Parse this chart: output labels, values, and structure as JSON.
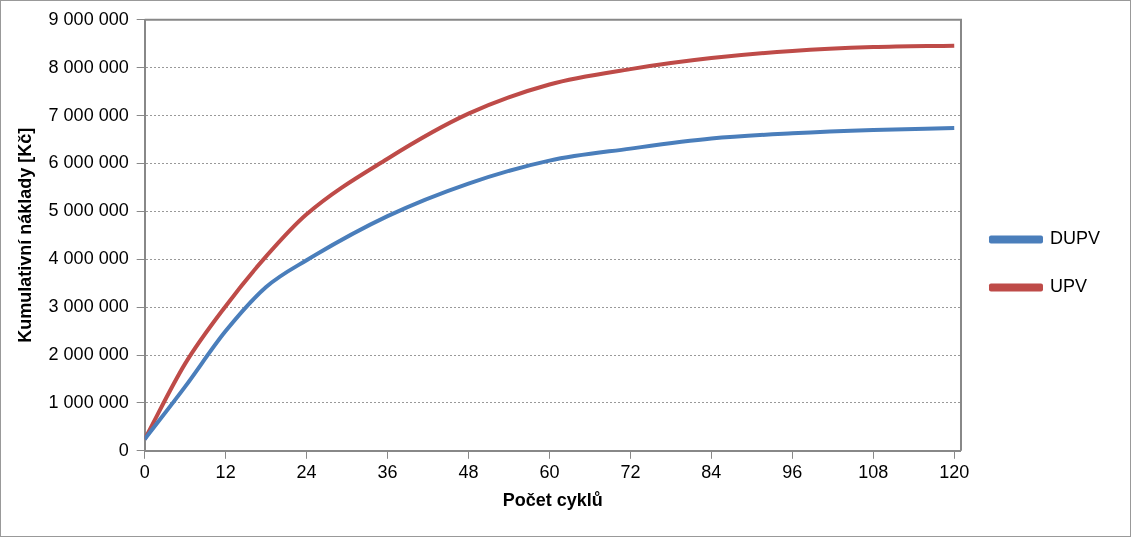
{
  "chart_data": {
    "type": "line",
    "xlabel": "Počet cyklů",
    "ylabel": "Kumulativní náklady [Kč]",
    "x": [
      0,
      6,
      12,
      18,
      24,
      36,
      48,
      60,
      72,
      84,
      96,
      108,
      120
    ],
    "series": [
      {
        "name": "DUPV",
        "color": "#4a7ebb",
        "values": [
          240000,
          1340000,
          2500000,
          3420000,
          3980000,
          4900000,
          5580000,
          6060000,
          6310000,
          6520000,
          6630000,
          6700000,
          6740000
        ]
      },
      {
        "name": "UPV",
        "color": "#be4b48",
        "values": [
          240000,
          1820000,
          3020000,
          4060000,
          4940000,
          6100000,
          7040000,
          7650000,
          7970000,
          8200000,
          8350000,
          8430000,
          8460000
        ]
      }
    ],
    "xlim": [
      0,
      121
    ],
    "xticks": [
      0,
      12,
      24,
      36,
      48,
      60,
      72,
      84,
      96,
      108,
      120
    ],
    "ylim": [
      0,
      9000000
    ],
    "yticks": [
      0,
      1000000,
      2000000,
      3000000,
      4000000,
      5000000,
      6000000,
      7000000,
      8000000,
      9000000
    ],
    "grid": "y",
    "legend": "right",
    "marker": "none",
    "line_style": "solid"
  }
}
